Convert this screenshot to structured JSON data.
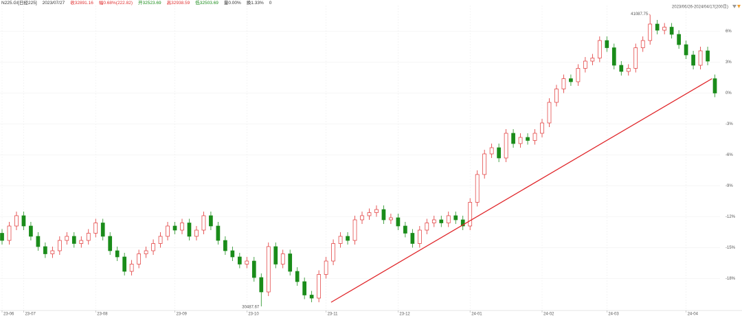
{
  "chart_data": {
    "type": "candlestick",
    "header": [
      {
        "text": "N225.GI[日经225]",
        "color": "#333333"
      },
      {
        "text": "2023/07/27",
        "color": "#333333"
      },
      {
        "text": "收32891.16",
        "color": "#e03030"
      },
      {
        "text": "幅0.68%(222.82)",
        "color": "#e03030"
      },
      {
        "text": "开32523.69",
        "color": "#1a8c1a"
      },
      {
        "text": "高32938.59",
        "color": "#e03030"
      },
      {
        "text": "低32503.69",
        "color": "#1a8c1a"
      },
      {
        "text": "量0.00%",
        "color": "#333333"
      },
      {
        "text": "换1.33%",
        "color": "#333333"
      },
      {
        "text": "0",
        "color": "#333333"
      }
    ],
    "range_label": "2023/06/26-2024/04/17(200日)",
    "max_label": "41087.75",
    "min_label": "30487.67",
    "up_color": "#e03030",
    "down_color": "#1a8c1a",
    "trendline_color": "#e0262a",
    "grid": true,
    "ylim": [
      -21.3,
      8.5
    ],
    "yticks": [
      {
        "value": 6,
        "label": "6%"
      },
      {
        "value": 3,
        "label": "3%"
      },
      {
        "value": 0,
        "label": "0%"
      },
      {
        "value": -3,
        "label": "-3%"
      },
      {
        "value": -6,
        "label": "-6%"
      },
      {
        "value": -9,
        "label": "-9%"
      },
      {
        "value": -12,
        "label": "-12%"
      },
      {
        "value": -15,
        "label": "-15%"
      },
      {
        "value": -18,
        "label": "-18%"
      }
    ],
    "categories": [
      "23-06",
      null,
      null,
      "23-07",
      null,
      null,
      null,
      null,
      null,
      null,
      null,
      null,
      null,
      "23-08",
      null,
      null,
      null,
      null,
      null,
      null,
      null,
      null,
      null,
      null,
      "23-09",
      null,
      null,
      null,
      null,
      null,
      null,
      null,
      null,
      null,
      "23-10",
      null,
      null,
      null,
      null,
      null,
      null,
      null,
      null,
      null,
      null,
      "23-11",
      null,
      null,
      null,
      null,
      null,
      null,
      null,
      null,
      null,
      "23-12",
      null,
      null,
      null,
      null,
      null,
      null,
      null,
      null,
      null,
      "24-01",
      null,
      null,
      null,
      null,
      null,
      null,
      null,
      null,
      null,
      "24-02",
      null,
      null,
      null,
      null,
      null,
      null,
      null,
      null,
      "24-03",
      null,
      null,
      null,
      null,
      null,
      null,
      null,
      null,
      null,
      null,
      "24-04",
      null,
      null,
      null,
      null
    ],
    "open": [
      -13.6,
      -14.3,
      -12.9,
      -11.9,
      -12.9,
      -13.9,
      -14.9,
      -15.6,
      -15.3,
      -14.3,
      -13.9,
      -14.6,
      -14.3,
      -13.6,
      -12.6,
      -13.9,
      -15.3,
      -15.9,
      -17.3,
      -16.6,
      -15.6,
      -15.3,
      -14.6,
      -13.9,
      -12.9,
      -13.3,
      -12.6,
      -13.9,
      -13.3,
      -11.9,
      -12.9,
      -14.3,
      -15.3,
      -15.9,
      -16.6,
      -16.3,
      -17.9,
      -19.3,
      -14.9,
      -16.6,
      -15.6,
      -17.3,
      -18.3,
      -19.6,
      -19.9,
      -17.6,
      -16.3,
      -14.6,
      -13.9,
      -14.3,
      -12.3,
      -11.9,
      -11.6,
      -11.3,
      -12.3,
      -12.1,
      -12.9,
      -13.6,
      -14.6,
      -13.3,
      -12.6,
      -12.3,
      -12.6,
      -11.9,
      -12.3,
      -12.9,
      -10.6,
      -7.9,
      -5.9,
      -5.3,
      -6.3,
      -3.9,
      -4.9,
      -4.3,
      -4.6,
      -3.9,
      -2.9,
      -0.9,
      0.4,
      1.4,
      1.1,
      2.4,
      3.1,
      3.4,
      5.1,
      4.4,
      2.7,
      2.1,
      2.4,
      4.4,
      5.1,
      6.7,
      6.1,
      6.4,
      5.7,
      4.7,
      3.7,
      2.7,
      4.1,
      1.4
    ],
    "high": [
      -13.2,
      -12.5,
      -11.5,
      -11.5,
      -12.5,
      -13.5,
      -14.5,
      -14.9,
      -13.9,
      -13.5,
      -13.5,
      -13.9,
      -13.2,
      -12.2,
      -12.2,
      -13.5,
      -14.9,
      -15.5,
      -16.2,
      -15.2,
      -14.9,
      -14.2,
      -13.5,
      -12.5,
      -12.5,
      -12.2,
      -12.2,
      -12.9,
      -11.5,
      -11.5,
      -12.5,
      -13.9,
      -14.9,
      -15.5,
      -15.9,
      -15.9,
      -17.5,
      -14.5,
      -14.5,
      -15.2,
      -15.2,
      -16.9,
      -17.9,
      -19.2,
      -17.2,
      -15.9,
      -14.2,
      -13.5,
      -13.5,
      -11.9,
      -11.5,
      -11.2,
      -10.9,
      -10.9,
      -11.7,
      -11.7,
      -12.5,
      -13.2,
      -12.9,
      -12.2,
      -11.9,
      -11.9,
      -11.5,
      -11.5,
      -11.9,
      -10.2,
      -7.5,
      -5.5,
      -4.9,
      -4.9,
      -3.5,
      -3.5,
      -3.9,
      -3.9,
      -3.5,
      -2.5,
      -0.5,
      0.8,
      1.8,
      1.8,
      2.8,
      3.5,
      3.8,
      5.5,
      5.5,
      4.8,
      3.1,
      2.8,
      4.8,
      5.5,
      7.6,
      7.1,
      6.8,
      6.8,
      6.1,
      5.1,
      4.1,
      4.5,
      4.5,
      1.8
    ],
    "low": [
      -14.7,
      -14.7,
      -13.3,
      -13.3,
      -14.3,
      -15.3,
      -16.0,
      -16.0,
      -15.7,
      -14.7,
      -15.0,
      -15.0,
      -14.7,
      -14.0,
      -14.3,
      -15.7,
      -16.3,
      -17.7,
      -17.7,
      -17.0,
      -16.0,
      -15.7,
      -15.0,
      -14.3,
      -13.7,
      -13.7,
      -14.3,
      -14.3,
      -13.7,
      -13.3,
      -14.7,
      -15.7,
      -16.3,
      -17.0,
      -17.0,
      -18.3,
      -20.7,
      -19.7,
      -17.0,
      -17.0,
      -17.7,
      -18.7,
      -20.0,
      -20.3,
      -20.3,
      -18.0,
      -16.7,
      -15.0,
      -14.7,
      -14.7,
      -12.7,
      -12.3,
      -12.0,
      -12.7,
      -12.7,
      -13.3,
      -14.0,
      -15.0,
      -15.0,
      -13.7,
      -13.0,
      -13.0,
      -13.0,
      -12.7,
      -13.3,
      -13.3,
      -11.0,
      -8.3,
      -6.3,
      -6.7,
      -6.7,
      -5.3,
      -5.3,
      -5.0,
      -5.0,
      -4.3,
      -3.3,
      -1.3,
      0.0,
      0.7,
      0.7,
      2.0,
      2.7,
      3.0,
      4.0,
      2.3,
      1.7,
      1.7,
      2.0,
      4.0,
      4.7,
      5.7,
      5.7,
      5.3,
      4.3,
      3.3,
      2.3,
      2.3,
      2.7,
      -0.4
    ],
    "close": [
      -14.3,
      -12.9,
      -11.9,
      -12.9,
      -13.9,
      -14.9,
      -15.6,
      -15.3,
      -14.3,
      -13.9,
      -14.6,
      -14.3,
      -13.6,
      -12.6,
      -13.9,
      -15.3,
      -15.9,
      -17.3,
      -16.6,
      -15.6,
      -15.3,
      -14.6,
      -13.9,
      -12.9,
      -13.3,
      -12.6,
      -13.9,
      -13.3,
      -11.9,
      -12.9,
      -14.3,
      -15.3,
      -15.9,
      -16.6,
      -16.3,
      -17.9,
      -19.3,
      -14.9,
      -16.6,
      -15.6,
      -17.3,
      -18.3,
      -19.6,
      -19.9,
      -17.6,
      -16.3,
      -14.6,
      -13.9,
      -14.3,
      -12.3,
      -11.9,
      -11.6,
      -11.3,
      -12.3,
      -12.1,
      -12.9,
      -13.6,
      -14.6,
      -13.3,
      -12.6,
      -12.3,
      -12.6,
      -11.9,
      -12.3,
      -12.9,
      -10.6,
      -7.9,
      -5.9,
      -5.3,
      -6.3,
      -3.9,
      -4.9,
      -4.3,
      -4.6,
      -3.9,
      -2.9,
      -0.9,
      0.4,
      1.4,
      1.1,
      2.4,
      3.1,
      3.4,
      5.1,
      4.4,
      2.7,
      2.1,
      2.4,
      4.4,
      5.1,
      6.7,
      6.1,
      6.4,
      5.7,
      4.7,
      3.7,
      2.7,
      4.1,
      3.1,
      0
    ],
    "trendline": {
      "x": [
        45.7,
        98.6
      ],
      "y": [
        -20.3,
        1.4
      ]
    }
  }
}
